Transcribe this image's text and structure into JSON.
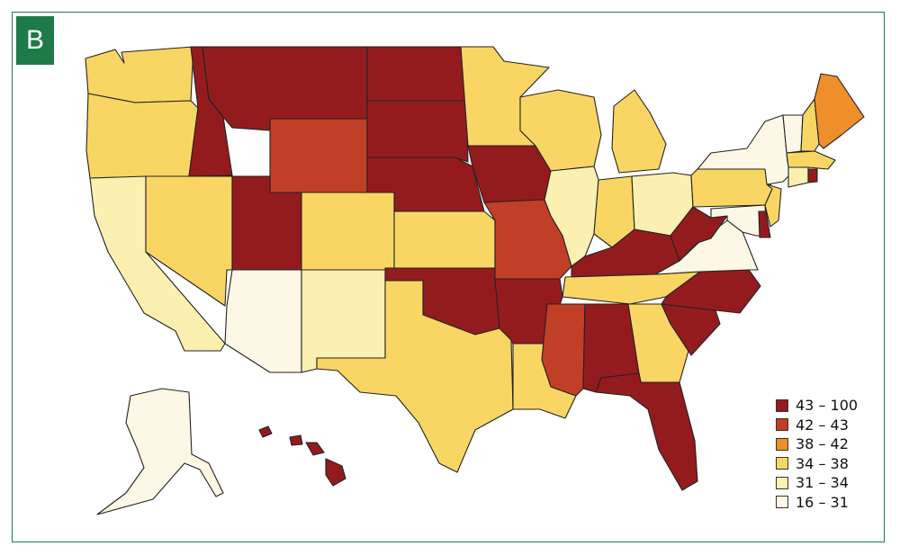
{
  "panel_label": "B",
  "colors": {
    "frame": "#1f7a4a",
    "bin_43_100": "#931b1e",
    "bin_42_43": "#c03f26",
    "bin_38_42": "#ee8f2a",
    "bin_34_38": "#f9d664",
    "bin_31_34": "#fcf0b0",
    "bin_16_31": "#fdf8e6"
  },
  "legend": {
    "items": [
      {
        "label": "43 – 100",
        "color": "#931b1e"
      },
      {
        "label": "42 – 43",
        "color": "#c03f26"
      },
      {
        "label": "38 – 42",
        "color": "#ee8f2a"
      },
      {
        "label": "34 – 38",
        "color": "#f9d664"
      },
      {
        "label": "31 – 34",
        "color": "#fcf0b0"
      },
      {
        "label": "16 – 31",
        "color": "#fdf8e6"
      }
    ]
  },
  "states": [
    {
      "code": "WA",
      "bin": "34 – 38"
    },
    {
      "code": "OR",
      "bin": "34 – 38"
    },
    {
      "code": "CA",
      "bin": "31 – 34"
    },
    {
      "code": "NV",
      "bin": "34 – 38"
    },
    {
      "code": "ID",
      "bin": "43 – 100"
    },
    {
      "code": "MT",
      "bin": "43 – 100"
    },
    {
      "code": "WY",
      "bin": "42 – 43"
    },
    {
      "code": "UT",
      "bin": "43 – 100"
    },
    {
      "code": "AZ",
      "bin": "16 – 31"
    },
    {
      "code": "CO",
      "bin": "34 – 38"
    },
    {
      "code": "NM",
      "bin": "31 – 34"
    },
    {
      "code": "ND",
      "bin": "43 – 100"
    },
    {
      "code": "SD",
      "bin": "43 – 100"
    },
    {
      "code": "NE",
      "bin": "43 – 100"
    },
    {
      "code": "KS",
      "bin": "34 – 38"
    },
    {
      "code": "OK",
      "bin": "43 – 100"
    },
    {
      "code": "TX",
      "bin": "34 – 38"
    },
    {
      "code": "MN",
      "bin": "34 – 38"
    },
    {
      "code": "IA",
      "bin": "43 – 100"
    },
    {
      "code": "MO",
      "bin": "42 – 43"
    },
    {
      "code": "AR",
      "bin": "43 – 100"
    },
    {
      "code": "LA",
      "bin": "34 – 38"
    },
    {
      "code": "WI",
      "bin": "34 – 38"
    },
    {
      "code": "IL",
      "bin": "31 – 34"
    },
    {
      "code": "MI",
      "bin": "34 – 38"
    },
    {
      "code": "IN",
      "bin": "34 – 38"
    },
    {
      "code": "OH",
      "bin": "31 – 34"
    },
    {
      "code": "KY",
      "bin": "43 – 100"
    },
    {
      "code": "TN",
      "bin": "34 – 38"
    },
    {
      "code": "MS",
      "bin": "42 – 43"
    },
    {
      "code": "AL",
      "bin": "43 – 100"
    },
    {
      "code": "GA",
      "bin": "34 – 38"
    },
    {
      "code": "FL",
      "bin": "43 – 100"
    },
    {
      "code": "SC",
      "bin": "43 – 100"
    },
    {
      "code": "NC",
      "bin": "43 – 100"
    },
    {
      "code": "VA",
      "bin": "16 – 31"
    },
    {
      "code": "WV",
      "bin": "43 – 100"
    },
    {
      "code": "PA",
      "bin": "34 – 38"
    },
    {
      "code": "NY",
      "bin": "16 – 31"
    },
    {
      "code": "VT",
      "bin": "16 – 31"
    },
    {
      "code": "NH",
      "bin": "34 – 38"
    },
    {
      "code": "ME",
      "bin": "38 – 42"
    },
    {
      "code": "MA",
      "bin": "34 – 38"
    },
    {
      "code": "RI",
      "bin": "43 – 100"
    },
    {
      "code": "CT",
      "bin": "31 – 34"
    },
    {
      "code": "NJ",
      "bin": "34 – 38"
    },
    {
      "code": "DE",
      "bin": "43 – 100"
    },
    {
      "code": "MD",
      "bin": "16 – 31"
    },
    {
      "code": "AK",
      "bin": "16 – 31"
    },
    {
      "code": "HI",
      "bin": "43 – 100"
    }
  ]
}
